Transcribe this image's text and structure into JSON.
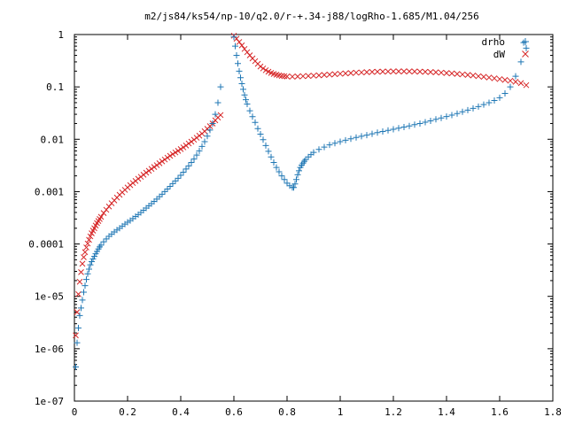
{
  "chart_data": {
    "type": "scatter",
    "title": "m2/js84/ks54/np-10/q2.0/r-+.34-j88/logRho-1.685/M1.04/256",
    "xlabel": "",
    "ylabel": "",
    "xlim": [
      0,
      1.8
    ],
    "ylim": [
      1e-07,
      1
    ],
    "yscale": "log",
    "grid": false,
    "legend": "top-right",
    "x_ticks": [
      {
        "value": 0,
        "label": "0"
      },
      {
        "value": 0.2,
        "label": "0.2"
      },
      {
        "value": 0.4,
        "label": "0.4"
      },
      {
        "value": 0.6,
        "label": "0.6"
      },
      {
        "value": 0.8,
        "label": "0.8"
      },
      {
        "value": 1.0,
        "label": "1"
      },
      {
        "value": 1.2,
        "label": "1.2"
      },
      {
        "value": 1.4,
        "label": "1.4"
      },
      {
        "value": 1.6,
        "label": "1.6"
      },
      {
        "value": 1.8,
        "label": "1.8"
      }
    ],
    "y_ticks": [
      {
        "value": 1e-07,
        "label": "1e-07"
      },
      {
        "value": 1e-06,
        "label": "1e-06"
      },
      {
        "value": 1e-05,
        "label": "1e-05"
      },
      {
        "value": 0.0001,
        "label": "0.0001"
      },
      {
        "value": 0.001,
        "label": "0.001"
      },
      {
        "value": 0.01,
        "label": "0.01"
      },
      {
        "value": 0.1,
        "label": "0.1"
      },
      {
        "value": 1,
        "label": "1"
      }
    ],
    "series": [
      {
        "name": "drho",
        "marker": "plus",
        "color": "#1f77b4",
        "alt_color": "#2ca02c",
        "x": [
          0.005,
          0.01,
          0.015,
          0.02,
          0.025,
          0.03,
          0.035,
          0.04,
          0.045,
          0.05,
          0.055,
          0.06,
          0.065,
          0.07,
          0.075,
          0.08,
          0.085,
          0.09,
          0.095,
          0.1,
          0.11,
          0.12,
          0.13,
          0.14,
          0.15,
          0.16,
          0.17,
          0.18,
          0.19,
          0.2,
          0.21,
          0.22,
          0.23,
          0.24,
          0.25,
          0.26,
          0.27,
          0.28,
          0.29,
          0.3,
          0.31,
          0.32,
          0.33,
          0.34,
          0.35,
          0.36,
          0.37,
          0.38,
          0.39,
          0.4,
          0.41,
          0.42,
          0.43,
          0.44,
          0.45,
          0.46,
          0.47,
          0.48,
          0.49,
          0.5,
          0.51,
          0.52,
          0.53,
          0.54,
          0.55,
          0.6,
          0.605,
          0.61,
          0.615,
          0.62,
          0.625,
          0.63,
          0.635,
          0.64,
          0.645,
          0.65,
          0.66,
          0.67,
          0.68,
          0.69,
          0.7,
          0.71,
          0.72,
          0.73,
          0.74,
          0.75,
          0.76,
          0.77,
          0.78,
          0.79,
          0.8,
          0.81,
          0.82,
          0.825,
          0.83,
          0.835,
          0.84,
          0.845,
          0.85,
          0.855,
          0.86,
          0.865,
          0.87,
          0.88,
          0.89,
          0.9,
          0.92,
          0.94,
          0.96,
          0.98,
          1.0,
          1.02,
          1.04,
          1.06,
          1.08,
          1.1,
          1.12,
          1.14,
          1.16,
          1.18,
          1.2,
          1.22,
          1.24,
          1.26,
          1.28,
          1.3,
          1.32,
          1.34,
          1.36,
          1.38,
          1.4,
          1.42,
          1.44,
          1.46,
          1.48,
          1.5,
          1.52,
          1.54,
          1.56,
          1.58,
          1.6,
          1.62,
          1.64,
          1.66,
          1.68,
          1.69,
          1.7
        ],
        "y": [
          4.5e-07,
          1.3e-06,
          2.5e-06,
          4.3e-06,
          6e-06,
          8.5e-06,
          1.2e-05,
          1.6e-05,
          2.1e-05,
          2.7e-05,
          3.3e-05,
          4e-05,
          4.6e-05,
          5.2e-05,
          5.8e-05,
          6.5e-05,
          7.2e-05,
          8e-05,
          8.8e-05,
          9.5e-05,
          0.00011,
          0.000125,
          0.00014,
          0.000155,
          0.00017,
          0.000185,
          0.0002,
          0.00022,
          0.00024,
          0.00026,
          0.00028,
          0.000305,
          0.000335,
          0.000365,
          0.0004,
          0.00044,
          0.000485,
          0.000535,
          0.00059,
          0.00065,
          0.00072,
          0.0008,
          0.00089,
          0.001,
          0.00112,
          0.00126,
          0.00142,
          0.0016,
          0.0018,
          0.00205,
          0.00235,
          0.0027,
          0.0031,
          0.0036,
          0.0042,
          0.005,
          0.006,
          0.0073,
          0.009,
          0.0115,
          0.015,
          0.02,
          0.03,
          0.05,
          0.1,
          0.9,
          0.6,
          0.4,
          0.28,
          0.2,
          0.15,
          0.115,
          0.09,
          0.07,
          0.057,
          0.047,
          0.035,
          0.027,
          0.021,
          0.016,
          0.0125,
          0.0098,
          0.0076,
          0.0059,
          0.0046,
          0.0036,
          0.0029,
          0.0024,
          0.002,
          0.0017,
          0.00145,
          0.0013,
          0.0012,
          0.0012,
          0.0014,
          0.0017,
          0.0021,
          0.0025,
          0.0029,
          0.0032,
          0.0035,
          0.0038,
          0.0041,
          0.0046,
          0.0051,
          0.0056,
          0.0064,
          0.0071,
          0.0078,
          0.0084,
          0.009,
          0.0096,
          0.0102,
          0.0108,
          0.0114,
          0.012,
          0.0127,
          0.0134,
          0.0141,
          0.0148,
          0.0155,
          0.0163,
          0.0171,
          0.018,
          0.019,
          0.02,
          0.0212,
          0.0225,
          0.024,
          0.0255,
          0.0272,
          0.029,
          0.031,
          0.0335,
          0.036,
          0.039,
          0.042,
          0.046,
          0.05,
          0.055,
          0.062,
          0.075,
          0.1,
          0.16,
          0.3,
          0.7,
          0.55
        ]
      },
      {
        "name": "dW",
        "marker": "cross",
        "color": "#d62728",
        "x": [
          0.005,
          0.01,
          0.015,
          0.02,
          0.025,
          0.03,
          0.035,
          0.04,
          0.045,
          0.05,
          0.055,
          0.06,
          0.065,
          0.07,
          0.075,
          0.08,
          0.085,
          0.09,
          0.095,
          0.1,
          0.11,
          0.12,
          0.13,
          0.14,
          0.15,
          0.16,
          0.17,
          0.18,
          0.19,
          0.2,
          0.21,
          0.22,
          0.23,
          0.24,
          0.25,
          0.26,
          0.27,
          0.28,
          0.29,
          0.3,
          0.31,
          0.32,
          0.33,
          0.34,
          0.35,
          0.36,
          0.37,
          0.38,
          0.39,
          0.4,
          0.41,
          0.42,
          0.43,
          0.44,
          0.45,
          0.46,
          0.47,
          0.48,
          0.49,
          0.5,
          0.51,
          0.52,
          0.53,
          0.54,
          0.55,
          0.6,
          0.61,
          0.62,
          0.63,
          0.64,
          0.65,
          0.66,
          0.67,
          0.68,
          0.69,
          0.7,
          0.71,
          0.72,
          0.73,
          0.74,
          0.75,
          0.76,
          0.77,
          0.78,
          0.79,
          0.8,
          0.82,
          0.84,
          0.86,
          0.88,
          0.9,
          0.92,
          0.94,
          0.96,
          0.98,
          1.0,
          1.02,
          1.04,
          1.06,
          1.08,
          1.1,
          1.12,
          1.14,
          1.16,
          1.18,
          1.2,
          1.22,
          1.24,
          1.26,
          1.28,
          1.3,
          1.32,
          1.34,
          1.36,
          1.38,
          1.4,
          1.42,
          1.44,
          1.46,
          1.48,
          1.5,
          1.52,
          1.54,
          1.56,
          1.58,
          1.6,
          1.62,
          1.64,
          1.66,
          1.68,
          1.7
        ],
        "y": [
          1.8e-06,
          5e-06,
          1.1e-05,
          1.9e-05,
          2.9e-05,
          4.2e-05,
          5.6e-05,
          7e-05,
          8.6e-05,
          0.000102,
          0.00012,
          0.00014,
          0.00016,
          0.00018,
          0.0002,
          0.000225,
          0.00025,
          0.000275,
          0.0003,
          0.00033,
          0.00039,
          0.00045,
          0.00052,
          0.0006,
          0.00068,
          0.00077,
          0.00087,
          0.00097,
          0.00108,
          0.0012,
          0.00133,
          0.00146,
          0.0016,
          0.00176,
          0.00192,
          0.0021,
          0.0023,
          0.0025,
          0.00272,
          0.00295,
          0.0032,
          0.00348,
          0.00378,
          0.0041,
          0.00445,
          0.00482,
          0.0052,
          0.0056,
          0.006,
          0.0065,
          0.007,
          0.0076,
          0.0083,
          0.009,
          0.0098,
          0.0107,
          0.0117,
          0.0128,
          0.0142,
          0.0158,
          0.0178,
          0.02,
          0.023,
          0.026,
          0.029,
          0.95,
          0.83,
          0.72,
          0.62,
          0.53,
          0.46,
          0.4,
          0.35,
          0.31,
          0.275,
          0.245,
          0.225,
          0.208,
          0.195,
          0.185,
          0.177,
          0.171,
          0.166,
          0.162,
          0.16,
          0.158,
          0.157,
          0.158,
          0.16,
          0.162,
          0.164,
          0.166,
          0.169,
          0.172,
          0.175,
          0.178,
          0.181,
          0.184,
          0.187,
          0.189,
          0.191,
          0.193,
          0.195,
          0.196,
          0.197,
          0.198,
          0.198,
          0.198,
          0.198,
          0.197,
          0.196,
          0.194,
          0.192,
          0.19,
          0.187,
          0.184,
          0.181,
          0.177,
          0.173,
          0.169,
          0.165,
          0.16,
          0.156,
          0.151,
          0.146,
          0.141,
          0.136,
          0.131,
          0.125,
          0.118,
          0.108
        ]
      }
    ]
  }
}
